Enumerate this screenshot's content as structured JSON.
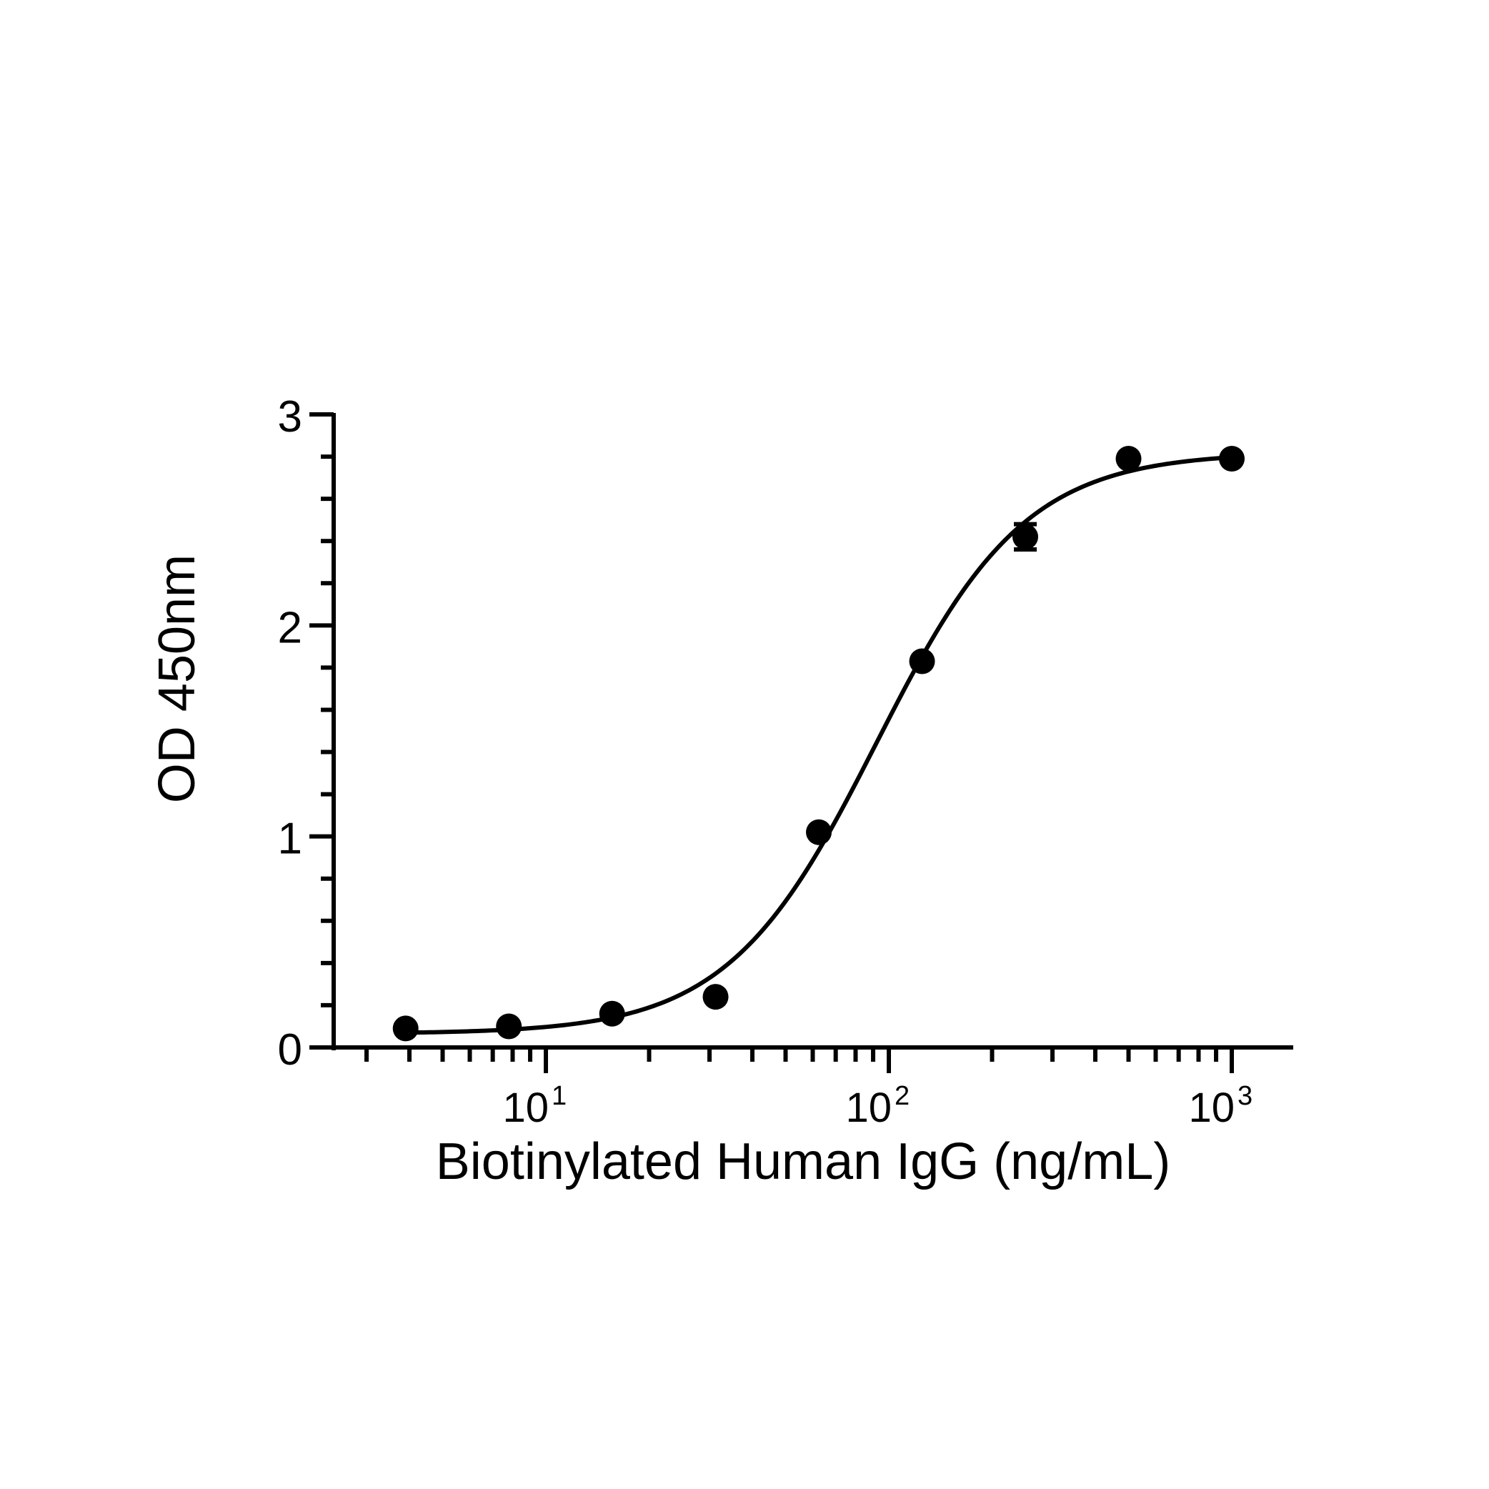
{
  "chart_data": {
    "type": "scatter",
    "xlabel": "Biotinylated Human IgG (ng/mL)",
    "ylabel": "OD 450nm",
    "x_scale": "log",
    "xlim": [
      2.5,
      1500
    ],
    "ylim": [
      0,
      3
    ],
    "x_ticks": [
      {
        "value": 10,
        "base": "10",
        "exp": "1"
      },
      {
        "value": 100,
        "base": "10",
        "exp": "2"
      },
      {
        "value": 1000,
        "base": "10",
        "exp": "3"
      }
    ],
    "y_ticks": [
      0,
      1,
      2,
      3
    ],
    "grid": false,
    "colors": {
      "series": "#000000"
    },
    "series": [
      {
        "x": [
          3.9,
          7.8,
          15.6,
          31.25,
          62.5,
          125,
          250,
          500,
          1000
        ],
        "y": [
          0.09,
          0.1,
          0.16,
          0.24,
          1.02,
          1.83,
          2.42,
          2.79,
          2.79
        ],
        "error": [
          0,
          0,
          0,
          0,
          0,
          0,
          0.06,
          0,
          0
        ]
      }
    ],
    "fit_curve": {
      "type": "4PL",
      "bottom": 0.065,
      "top": 2.82,
      "ec50": 92,
      "hill": 2.0
    }
  }
}
